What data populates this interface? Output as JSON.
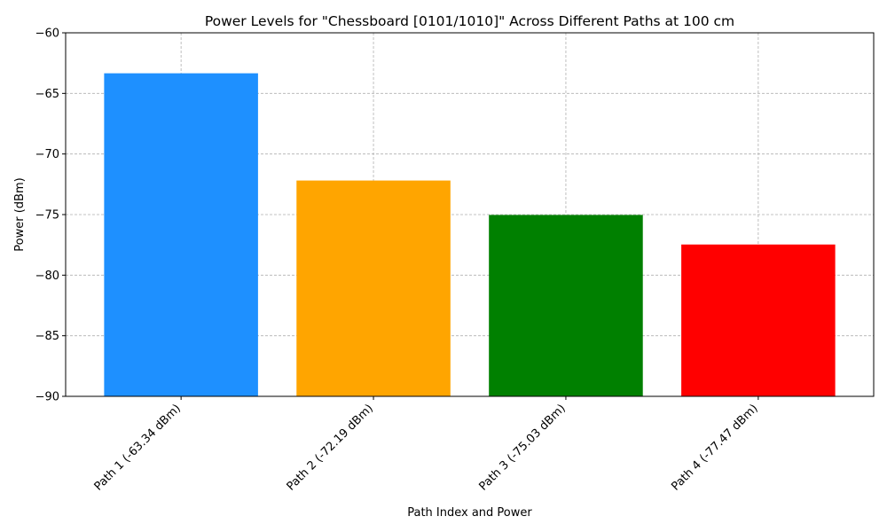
{
  "chart_data": {
    "type": "bar",
    "title": "Power Levels for \"Chessboard [0101/1010]\" Across Different Paths at 100 cm",
    "xlabel": "Path Index and Power",
    "ylabel": "Power (dBm)",
    "categories": [
      "Path 1 (-63.34 dBm)",
      "Path 2 (-72.19 dBm)",
      "Path 3 (-75.03 dBm)",
      "Path 4 (-77.47 dBm)"
    ],
    "values": [
      -63.34,
      -72.19,
      -75.03,
      -77.47
    ],
    "colors": [
      "#1e90ff",
      "#ffa500",
      "#008000",
      "#ff0000"
    ],
    "ylim": [
      -90,
      -60
    ],
    "yticks": [
      -90,
      -85,
      -80,
      -75,
      -70,
      -65,
      -60
    ],
    "ytick_labels": [
      "−90",
      "−85",
      "−80",
      "−75",
      "−70",
      "−65",
      "−60"
    ],
    "grid": true,
    "legend": "none"
  }
}
